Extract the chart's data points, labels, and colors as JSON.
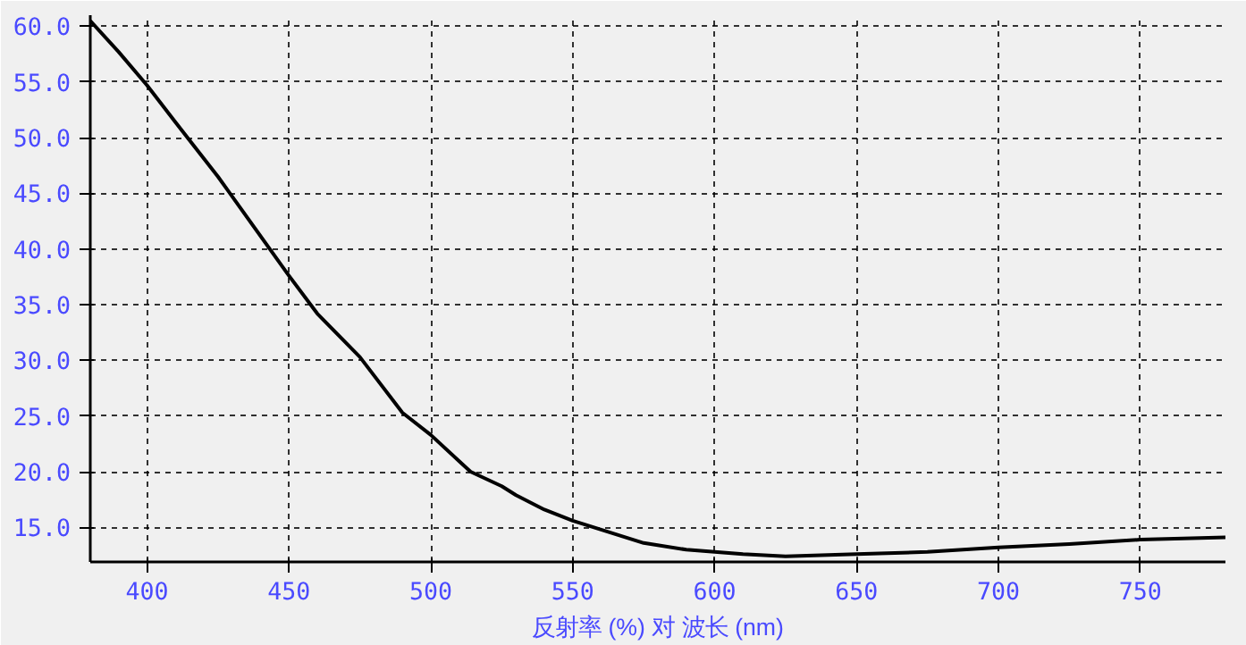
{
  "chart_data": {
    "type": "line",
    "xlabel": "反射率 (%) 对 波长 (nm)",
    "x": [
      380,
      390,
      400,
      410,
      425,
      450,
      460,
      475,
      490,
      500,
      514,
      525,
      530,
      540,
      550,
      560,
      575,
      590,
      600,
      610,
      625,
      650,
      675,
      700,
      725,
      750,
      780
    ],
    "series": [
      {
        "color": "#000000",
        "values": [
          60.5,
          57.7,
          54.7,
          51.4,
          46.5,
          37.6,
          34.2,
          30.3,
          25.3,
          23.3,
          20.0,
          18.7,
          17.9,
          16.6,
          15.6,
          14.8,
          13.6,
          13.0,
          12.8,
          12.6,
          12.4,
          12.6,
          12.8,
          13.2,
          13.5,
          13.9,
          14.1
        ]
      }
    ],
    "xlim": [
      380,
      780
    ],
    "ylim": [
      11.9,
      61.0
    ],
    "xticks": [
      400,
      450,
      500,
      550,
      600,
      650,
      700,
      750
    ],
    "yticks": [
      {
        "value": 15,
        "label": "15.0"
      },
      {
        "value": 20,
        "label": "20.0"
      },
      {
        "value": 25,
        "label": "25.0"
      },
      {
        "value": 30,
        "label": "30.0"
      },
      {
        "value": 35,
        "label": "35.0"
      },
      {
        "value": 40,
        "label": "40.0"
      },
      {
        "value": 45,
        "label": "45.0"
      },
      {
        "value": 50,
        "label": "50.0"
      },
      {
        "value": 55,
        "label": "55.0"
      },
      {
        "value": 60,
        "label": "60.0"
      }
    ],
    "grid": true,
    "line_style": "solid",
    "marker": "none"
  }
}
